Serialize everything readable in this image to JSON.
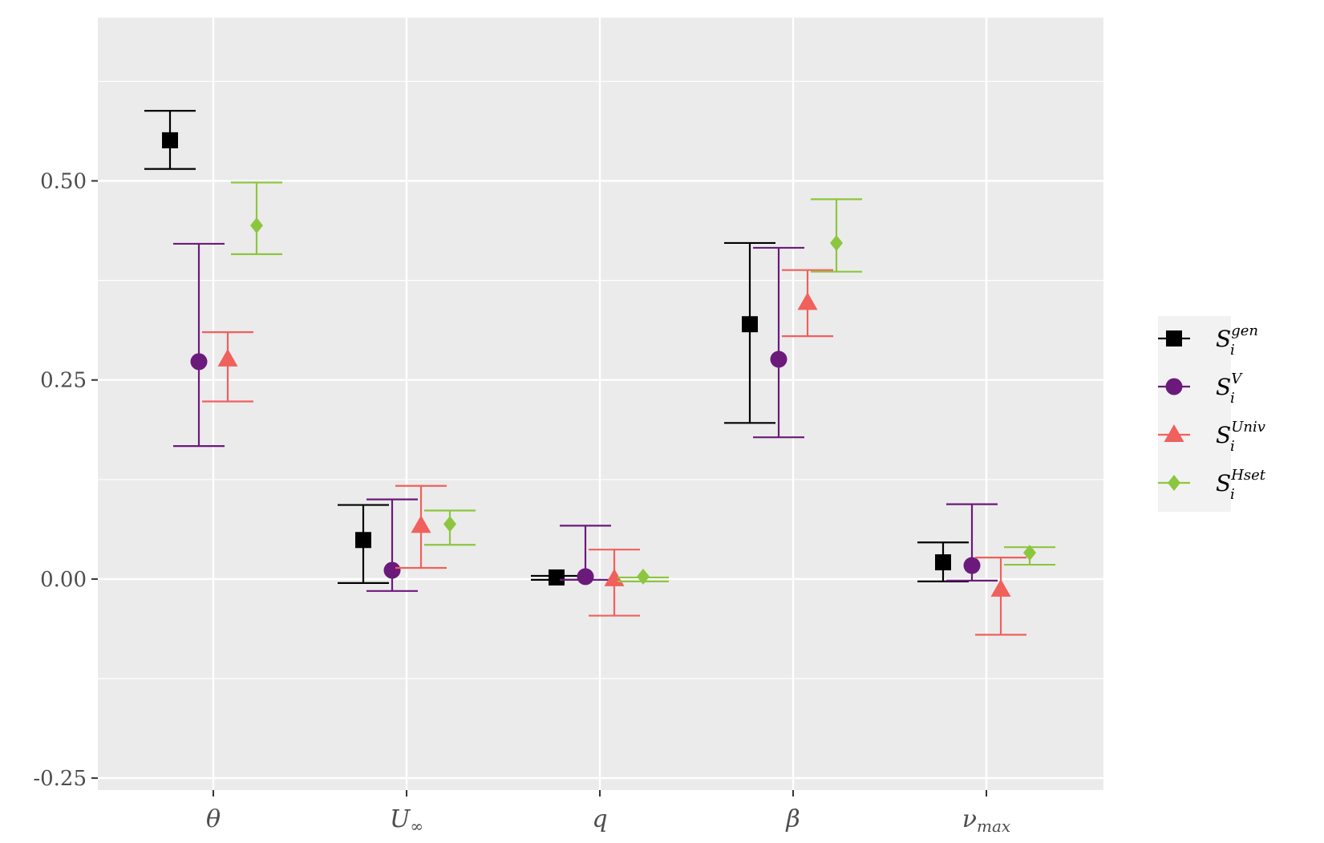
{
  "chart_data": {
    "type": "scatter",
    "title": "",
    "xlabel": "",
    "ylabel": "",
    "categories": [
      "θ",
      "U∞",
      "q",
      "β",
      "νmax"
    ],
    "category_labels": [
      {
        "main": "θ",
        "sub": ""
      },
      {
        "main": "U",
        "sub": "∞"
      },
      {
        "main": "q",
        "sub": ""
      },
      {
        "main": "β",
        "sub": ""
      },
      {
        "main": "ν",
        "sub": "max"
      }
    ],
    "ylim": [
      -0.265,
      0.705
    ],
    "yticks": [
      -0.25,
      0.0,
      0.25,
      0.5
    ],
    "ytick_labels": [
      "-0.25",
      "0.00",
      "0.25",
      "0.50"
    ],
    "grid": true,
    "legend_position": "right",
    "series": [
      {
        "name": "S_i^gen",
        "label_main": "S",
        "label_sub": "i",
        "label_sup": "gen",
        "marker": "square",
        "color": "#000000",
        "values": [
          0.551,
          0.049,
          0.002,
          0.32,
          0.021
        ],
        "lower": [
          0.515,
          -0.005,
          -0.001,
          0.196,
          -0.003
        ],
        "upper": [
          0.588,
          0.093,
          0.004,
          0.422,
          0.046
        ]
      },
      {
        "name": "S_i^V",
        "label_main": "S",
        "label_sub": "i",
        "label_sup": "V",
        "marker": "circle",
        "color": "#6b1a7b",
        "values": [
          0.273,
          0.011,
          0.003,
          0.276,
          0.017
        ],
        "lower": [
          0.167,
          -0.015,
          -0.001,
          0.178,
          -0.002
        ],
        "upper": [
          0.421,
          0.1,
          0.067,
          0.416,
          0.094
        ]
      },
      {
        "name": "S_i^Univ",
        "label_main": "S",
        "label_sub": "i",
        "label_sup": "Univ",
        "marker": "triangle",
        "color": "#f0605d",
        "values": [
          0.276,
          0.067,
          0.0,
          0.347,
          -0.013
        ],
        "lower": [
          0.223,
          0.014,
          -0.046,
          0.305,
          -0.07
        ],
        "upper": [
          0.31,
          0.117,
          0.037,
          0.388,
          0.027
        ]
      },
      {
        "name": "S_i^Hset",
        "label_main": "S",
        "label_sub": "i",
        "label_sup": "Hset",
        "marker": "diamond",
        "color": "#8cc63f",
        "values": [
          0.444,
          0.069,
          0.003,
          0.422,
          0.033
        ],
        "lower": [
          0.408,
          0.043,
          -0.003,
          0.386,
          0.018
        ],
        "upper": [
          0.498,
          0.086,
          0.002,
          0.477,
          0.04
        ]
      }
    ]
  }
}
